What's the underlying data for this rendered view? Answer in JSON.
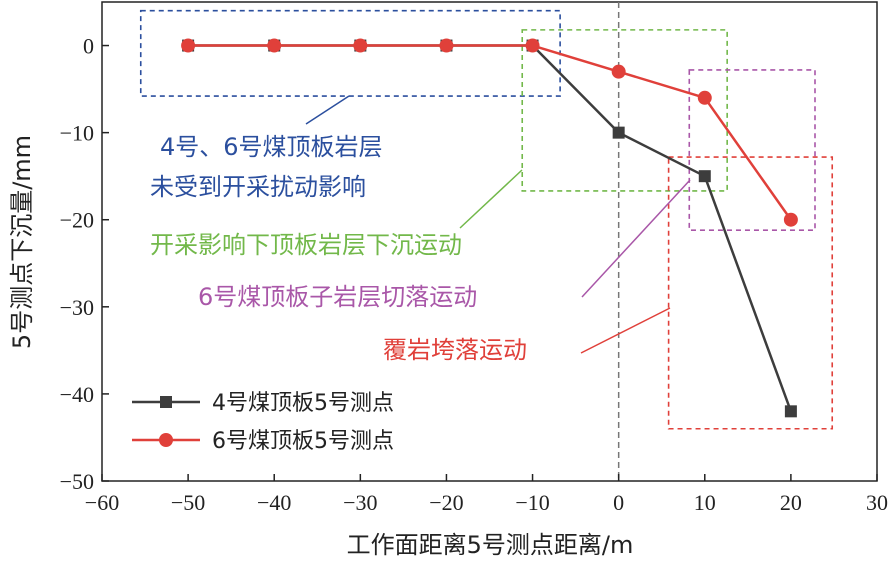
{
  "chart_data": {
    "type": "line",
    "xlabel": "工作面距离5号测点距离/m",
    "ylabel": "5号测点下沉量/mm",
    "xlim": [
      -60,
      30
    ],
    "ylim": [
      -50,
      5
    ],
    "x_ticks": [
      -60,
      -50,
      -40,
      -30,
      -20,
      -10,
      0,
      10,
      20,
      30
    ],
    "y_ticks": [
      0,
      -10,
      -20,
      -30,
      -40,
      -50
    ],
    "x_tick_labels": [
      "−60",
      "−50",
      "−40",
      "−30",
      "−20",
      "−10",
      "0",
      "10",
      "20",
      "30"
    ],
    "y_tick_labels": [
      "0",
      "−10",
      "−20",
      "−30",
      "−40",
      "−50"
    ],
    "grid": false,
    "legend_position": "bottom-left",
    "reference_line_x": 0,
    "series": [
      {
        "name": "4号煤顶板5号测点",
        "marker": "square",
        "color": "#3d3d3d",
        "x": [
          -50,
          -40,
          -30,
          -20,
          -10,
          0,
          10,
          20
        ],
        "values": [
          0,
          0,
          0,
          0,
          0,
          -10,
          -15,
          -42
        ]
      },
      {
        "name": "6号煤顶板5号测点",
        "marker": "circle",
        "color": "#e0403a",
        "x": [
          -50,
          -40,
          -30,
          -20,
          -10,
          0,
          10,
          20
        ],
        "values": [
          0,
          0,
          0,
          0,
          0,
          -3,
          -6,
          -20
        ]
      }
    ],
    "regions": [
      {
        "label_lines": [
          "4号、6号煤顶板岩层",
          "未受到开采扰动影响"
        ],
        "color": "#2b4f9e",
        "x_range": [
          -55.5,
          -6.8
        ],
        "y_range": [
          -5.8,
          4
        ]
      },
      {
        "label_lines": [
          "开采影响下顶板岩层下沉运动"
        ],
        "color": "#72b84a",
        "x_range": [
          -11.2,
          12.6
        ],
        "y_range": [
          -16.7,
          1.8
        ]
      },
      {
        "label_lines": [
          "6号煤顶板子岩层切落运动"
        ],
        "color": "#a957a8",
        "x_range": [
          8.2,
          22.8
        ],
        "y_range": [
          -21.2,
          -2.8
        ]
      },
      {
        "label_lines": [
          "覆岩垮落运动"
        ],
        "color": "#e0403a",
        "x_range": [
          5.8,
          24.8
        ],
        "y_range": [
          -44,
          -12.8
        ]
      }
    ]
  }
}
